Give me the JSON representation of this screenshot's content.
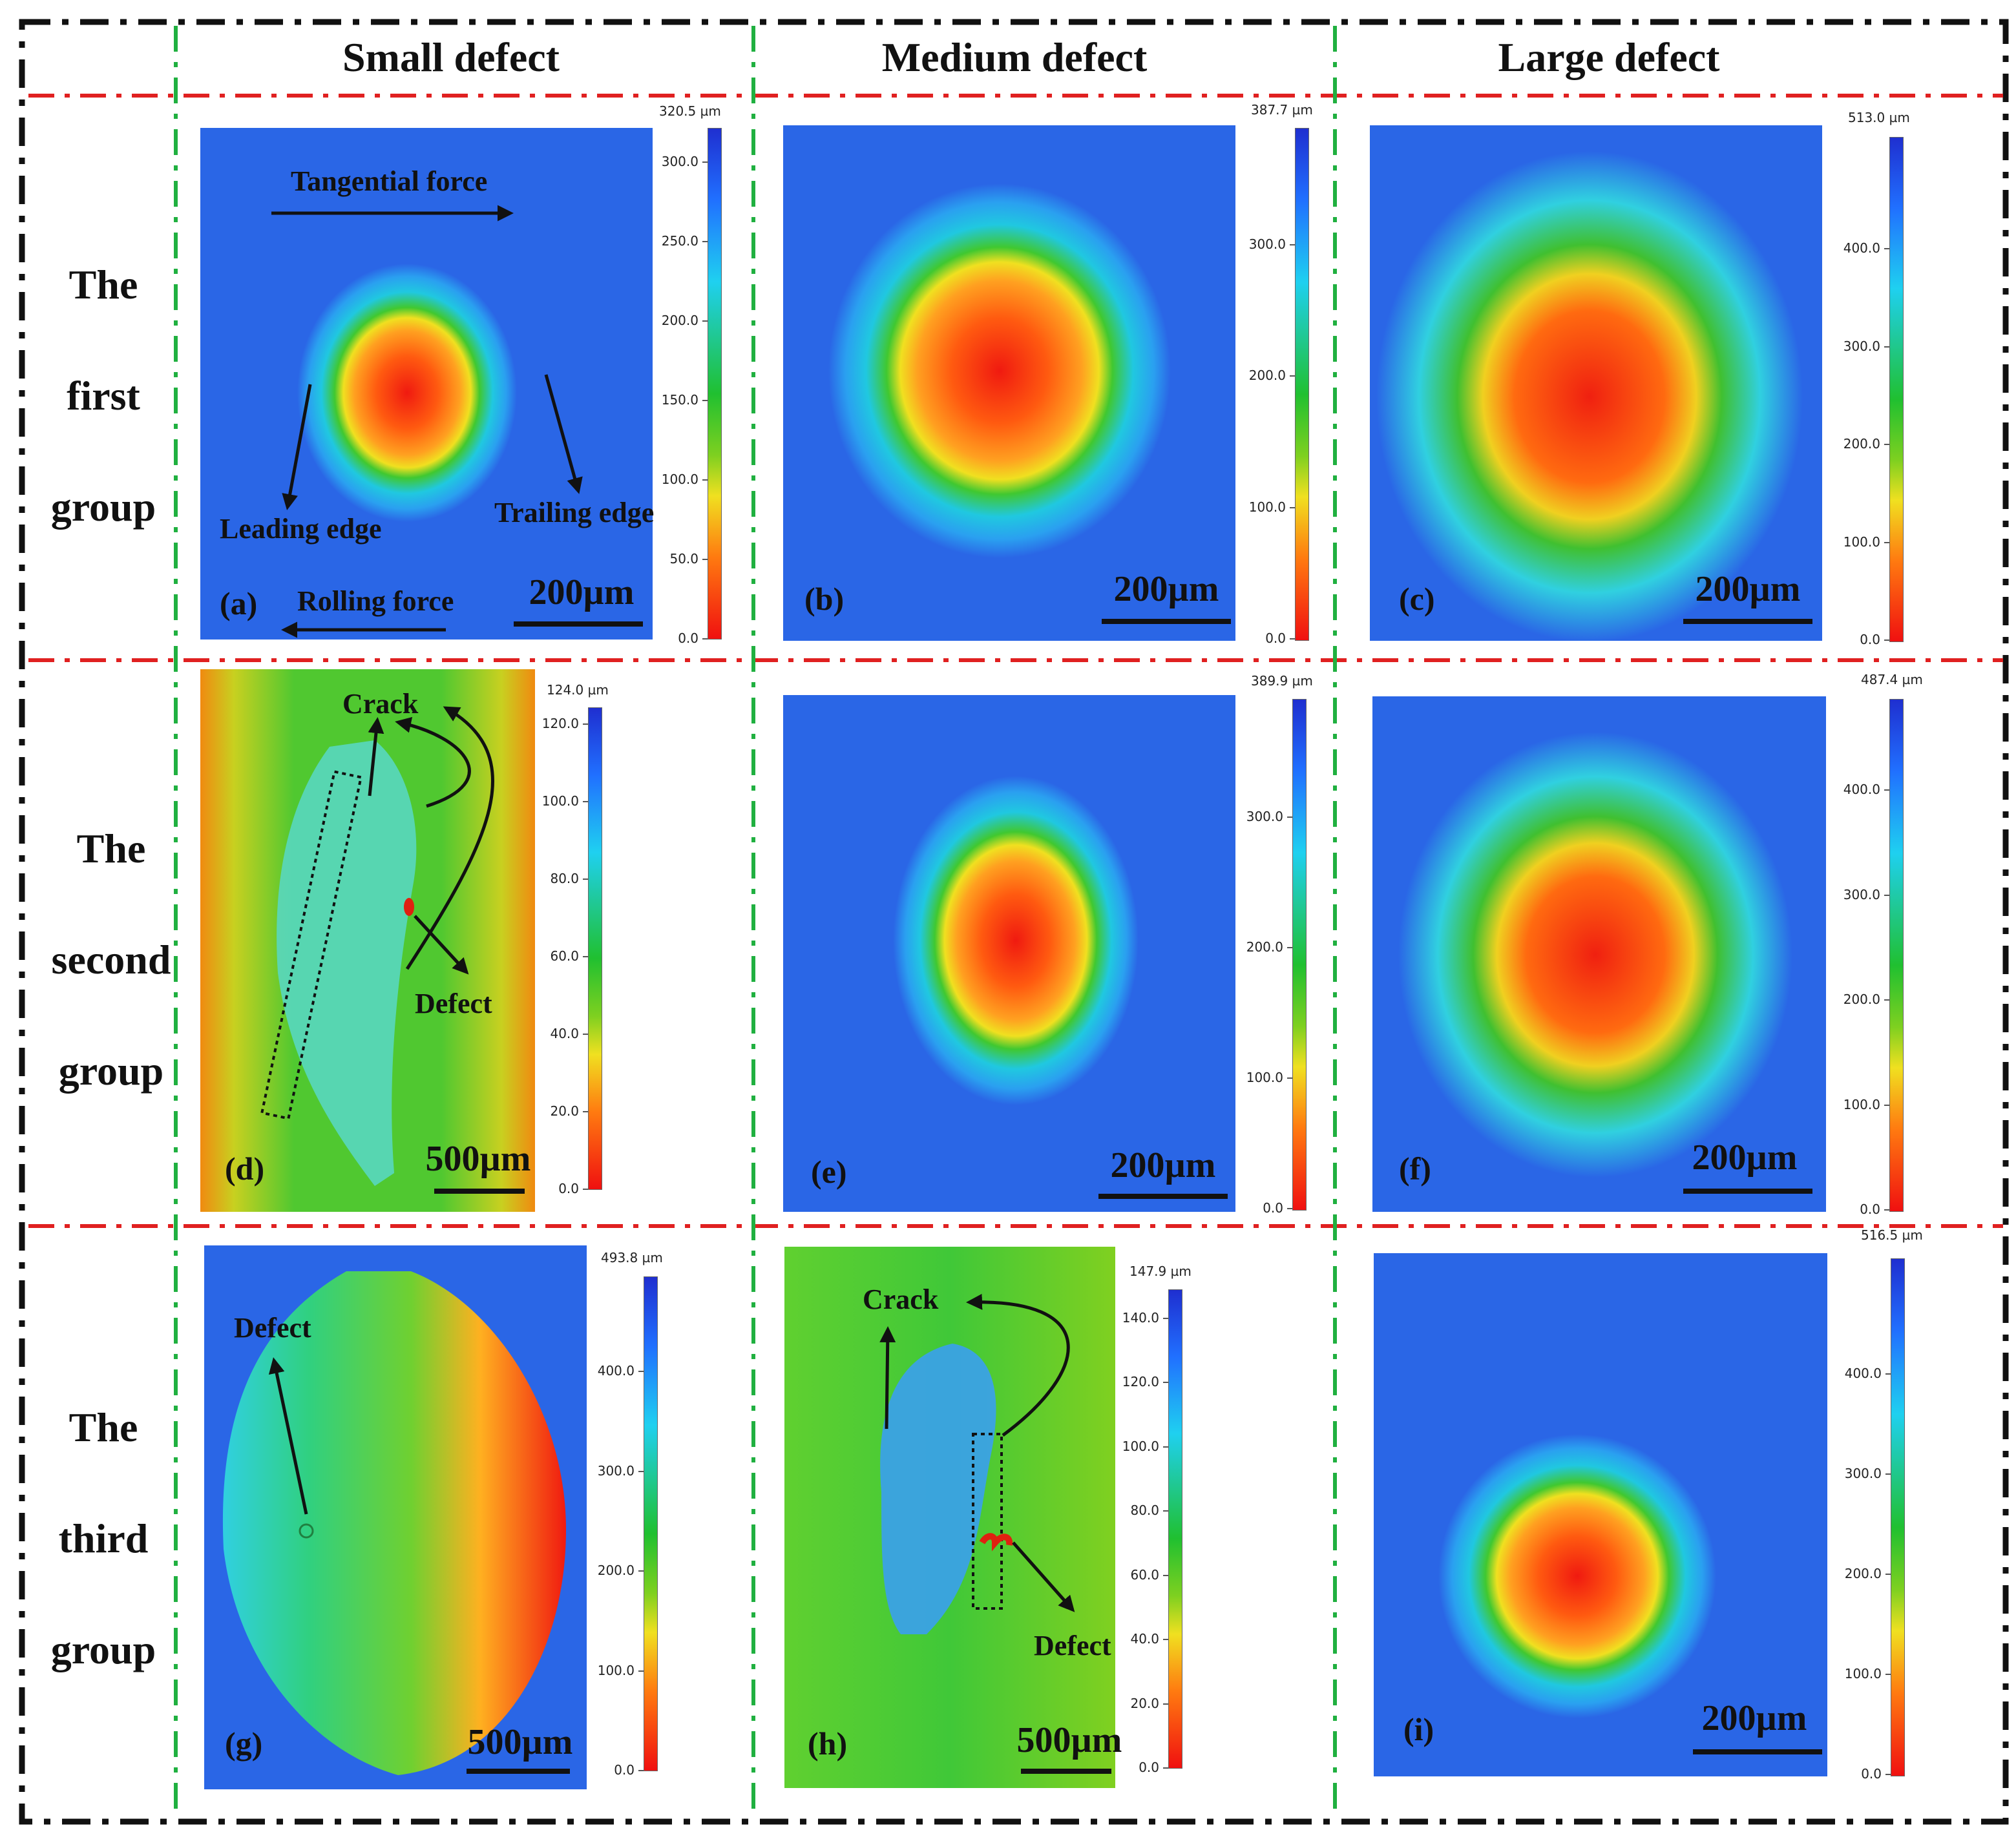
{
  "columns": [
    "Small defect",
    "Medium defect",
    "Large defect"
  ],
  "rows": [
    [
      "The",
      "first",
      "group"
    ],
    [
      "The",
      "second",
      "group"
    ],
    [
      "The",
      "third",
      "group"
    ]
  ],
  "panels": {
    "a": {
      "tag": "(a)",
      "scale": "200µm",
      "cb_max": "320.5 µm",
      "ticks": [
        "300.0",
        "250.0",
        "200.0",
        "150.0",
        "100.0",
        "50.0",
        "0.0"
      ]
    },
    "b": {
      "tag": "(b)",
      "scale": "200µm",
      "cb_max": "387.7 µm",
      "ticks": [
        "300.0",
        "200.0",
        "100.0",
        "0.0"
      ]
    },
    "c": {
      "tag": "(c)",
      "scale": "200µm",
      "cb_max": "513.0 µm",
      "ticks": [
        "400.0",
        "300.0",
        "200.0",
        "100.0",
        "0.0"
      ]
    },
    "d": {
      "tag": "(d)",
      "scale": "500µm",
      "cb_max": "124.0 µm",
      "ticks": [
        "120.0",
        "100.0",
        "80.0",
        "60.0",
        "40.0",
        "20.0",
        "0.0"
      ]
    },
    "e": {
      "tag": "(e)",
      "scale": "200µm",
      "cb_max": "389.9 µm",
      "ticks": [
        "300.0",
        "200.0",
        "100.0",
        "0.0"
      ]
    },
    "f": {
      "tag": "(f)",
      "scale": "200µm",
      "cb_max": "487.4 µm",
      "ticks": [
        "400.0",
        "300.0",
        "200.0",
        "100.0",
        "0.0"
      ]
    },
    "g": {
      "tag": "(g)",
      "scale": "500µm",
      "cb_max": "493.8 µm",
      "ticks": [
        "400.0",
        "300.0",
        "200.0",
        "100.0",
        "0.0"
      ]
    },
    "h": {
      "tag": "(h)",
      "scale": "500µm",
      "cb_max": "147.9 µm",
      "ticks": [
        "140.0",
        "120.0",
        "100.0",
        "80.0",
        "60.0",
        "40.0",
        "20.0",
        "0.0"
      ]
    },
    "i": {
      "tag": "(i)",
      "scale": "200µm",
      "cb_max": "516.5 µm",
      "ticks": [
        "400.0",
        "300.0",
        "200.0",
        "100.0",
        "0.0"
      ]
    }
  },
  "annotations": {
    "tangential_force": "Tangential force",
    "leading_edge": "Leading edge",
    "trailing_edge": "Trailing edge",
    "rolling_force": "Rolling force",
    "crack_d": "Crack",
    "defect_d": "Defect",
    "defect_g": "Defect",
    "crack_h": "Crack",
    "defect_h": "Defect"
  },
  "colors": {
    "frame_black": "#111111",
    "divider_red": "#e02020",
    "divider_green": "#20b040",
    "surface_blue": "#2a66e6",
    "defect_red": "#f03010"
  }
}
